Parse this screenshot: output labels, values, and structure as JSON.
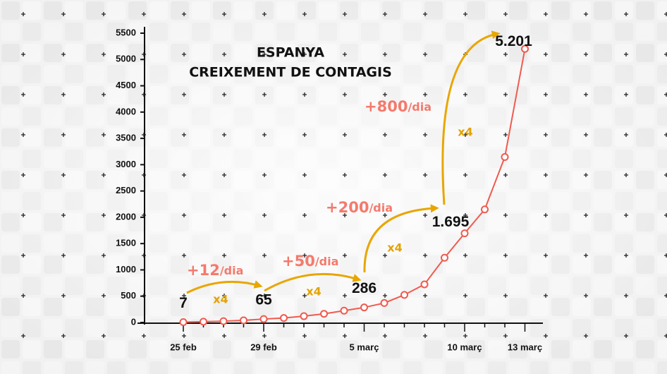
{
  "chart_data": {
    "type": "line",
    "title": [
      "ESPANYA",
      "CREIXEMENT DE CONTAGIS"
    ],
    "categories": [
      "25 feb",
      null,
      null,
      null,
      "29 feb",
      null,
      null,
      null,
      null,
      "5 març",
      null,
      null,
      null,
      null,
      "10 març",
      null,
      null,
      "13 març"
    ],
    "series": [
      {
        "color": "#f05a4f",
        "values": [
          7,
          15,
          25,
          40,
          65,
          85,
          120,
          165,
          225,
          286,
          370,
          525,
          725,
          1231,
          1695,
          2150,
          3146,
          5201
        ],
        "value_labels": [
          "7",
          null,
          null,
          null,
          "65",
          null,
          null,
          null,
          null,
          "286",
          null,
          null,
          null,
          null,
          "1.695",
          null,
          null,
          "5.201"
        ]
      }
    ],
    "ylim": [
      0,
      5500
    ],
    "yticks": [
      0,
      500,
      1000,
      1500,
      2000,
      2500,
      3000,
      3500,
      4000,
      4500,
      5000,
      5500
    ],
    "annotations": [
      {
        "rate": "+12",
        "unit": "/dia",
        "factor": "x4"
      },
      {
        "rate": "+50",
        "unit": "/dia",
        "factor": "x4"
      },
      {
        "rate": "+200",
        "unit": "/dia",
        "factor": "x4"
      },
      {
        "rate": "+800",
        "unit": "/dia",
        "factor": "x4"
      }
    ]
  }
}
